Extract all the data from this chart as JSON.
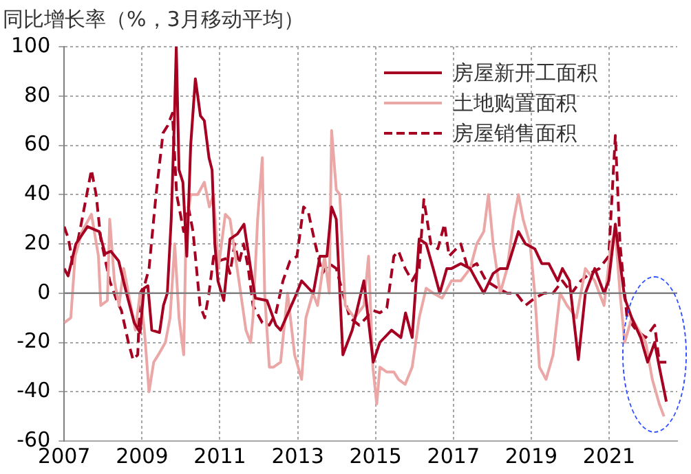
{
  "chart_data": {
    "type": "line",
    "title": "同比增长率（%，3月移动平均）",
    "xlim": [
      2007,
      2022.75
    ],
    "xticks": [
      2007,
      2009,
      2011,
      2013,
      2015,
      2017,
      2019,
      2021
    ],
    "ylim": [
      -60,
      100
    ],
    "yticks": [
      -60,
      -40,
      -20,
      0,
      20,
      40,
      60,
      80,
      100
    ],
    "grid": true,
    "legend": "top right",
    "marker": "none",
    "ref_lines": [
      {
        "axis": "y",
        "value": 0,
        "color": "#808080"
      }
    ],
    "series": [
      {
        "name": "房屋新开工面积",
        "color": "#a50021",
        "line_style": "solid",
        "x": [
          2007.0,
          2007.1,
          2007.3,
          2007.6,
          2007.9,
          2008.05,
          2008.2,
          2008.4,
          2008.6,
          2008.8,
          2008.95,
          2009.05,
          2009.15,
          2009.25,
          2009.45,
          2009.55,
          2009.65,
          2009.75,
          2009.83,
          2009.88,
          2009.95,
          2010.05,
          2010.15,
          2010.25,
          2010.37,
          2010.5,
          2010.6,
          2010.72,
          2010.8,
          2010.87,
          2010.95,
          2011.1,
          2011.26,
          2011.45,
          2011.62,
          2011.79,
          2011.91,
          2012.21,
          2012.44,
          2012.56,
          2012.92,
          2013.1,
          2013.4,
          2013.57,
          2013.75,
          2013.87,
          2013.99,
          2014.16,
          2014.4,
          2014.58,
          2014.7,
          2014.94,
          2015.11,
          2015.41,
          2015.65,
          2015.77,
          2015.94,
          2016.12,
          2016.3,
          2016.48,
          2016.65,
          2016.83,
          2016.95,
          2017.19,
          2017.43,
          2017.6,
          2017.78,
          2018.02,
          2018.2,
          2018.38,
          2018.67,
          2018.85,
          2019.09,
          2019.27,
          2019.45,
          2019.68,
          2019.8,
          2019.98,
          2020.21,
          2020.39,
          2020.63,
          2020.87,
          2020.99,
          2021.16,
          2021.22,
          2021.4,
          2021.58,
          2021.81,
          2021.99,
          2022.17,
          2022.29,
          2022.47
        ],
        "values": [
          10,
          7,
          20,
          27,
          25,
          16,
          17,
          13,
          0,
          -12,
          -16,
          2,
          3,
          -15,
          -16,
          -5,
          0,
          30,
          70,
          100,
          50,
          45,
          15,
          60,
          87,
          72,
          70,
          55,
          50,
          20,
          5,
          -3,
          22,
          24,
          28,
          10,
          -2,
          -3,
          -13,
          -15,
          -2,
          5,
          0,
          15,
          15,
          35,
          30,
          -25,
          -15,
          -3,
          5,
          -28,
          -20,
          -15,
          -18,
          -8,
          -18,
          22,
          20,
          10,
          0,
          10,
          10,
          12,
          10,
          5,
          0,
          8,
          10,
          10,
          25,
          20,
          18,
          12,
          12,
          5,
          10,
          5,
          -27,
          0,
          10,
          0,
          5,
          28,
          20,
          -2,
          -10,
          -18,
          -28,
          -20,
          -30,
          -44
        ]
      },
      {
        "name": "土地购置面积",
        "color": "#eba6a6",
        "line_style": "solid",
        "x": [
          2007.0,
          2007.17,
          2007.28,
          2007.46,
          2007.7,
          2007.88,
          2007.94,
          2008.11,
          2008.17,
          2008.29,
          2008.41,
          2008.53,
          2008.71,
          2008.83,
          2008.95,
          2009.06,
          2009.18,
          2009.3,
          2009.42,
          2009.6,
          2009.72,
          2009.84,
          2009.95,
          2010.07,
          2010.13,
          2010.25,
          2010.43,
          2010.6,
          2010.73,
          2010.84,
          2010.96,
          2011.14,
          2011.26,
          2011.49,
          2011.67,
          2011.79,
          2011.85,
          2011.97,
          2012.09,
          2012.15,
          2012.27,
          2012.38,
          2012.56,
          2012.74,
          2012.92,
          2013.1,
          2013.21,
          2013.39,
          2013.51,
          2013.69,
          2013.81,
          2013.87,
          2013.99,
          2014.08,
          2014.22,
          2014.46,
          2014.7,
          2014.82,
          2014.93,
          2015.03,
          2015.11,
          2015.29,
          2015.47,
          2015.59,
          2015.76,
          2015.94,
          2016.12,
          2016.3,
          2016.48,
          2016.71,
          2016.95,
          2017.19,
          2017.43,
          2017.6,
          2017.78,
          2017.9,
          2018.02,
          2018.2,
          2018.38,
          2018.55,
          2018.67,
          2018.79,
          2018.97,
          2019.09,
          2019.21,
          2019.38,
          2019.56,
          2019.74,
          2019.92,
          2020.16,
          2020.39,
          2020.63,
          2020.87,
          2021.05,
          2021.16,
          2021.28,
          2021.4,
          2021.58,
          2021.76,
          2021.94,
          2022.11,
          2022.29,
          2022.41
        ],
        "values": [
          -12,
          -10,
          15,
          25,
          32,
          15,
          -5,
          -3,
          30,
          5,
          -5,
          10,
          -5,
          -15,
          0,
          -15,
          -40,
          -28,
          -25,
          -20,
          -10,
          20,
          -10,
          -25,
          25,
          40,
          40,
          45,
          35,
          40,
          10,
          32,
          30,
          5,
          -15,
          -20,
          -10,
          30,
          55,
          0,
          -30,
          -30,
          -28,
          0,
          -25,
          -35,
          -10,
          0,
          -5,
          15,
          0,
          66,
          42,
          40,
          -5,
          -10,
          -5,
          15,
          -30,
          -45,
          -30,
          -32,
          -32,
          -35,
          -37,
          -30,
          -10,
          2,
          0,
          -2,
          5,
          5,
          10,
          20,
          25,
          40,
          20,
          0,
          10,
          30,
          40,
          30,
          20,
          0,
          -30,
          -35,
          -25,
          0,
          -5,
          -10,
          10,
          5,
          -5,
          20,
          25,
          0,
          -20,
          -10,
          -15,
          -20,
          -35,
          -45,
          -50
        ]
      },
      {
        "name": "房屋销售面积",
        "color": "#a50021",
        "line_style": "dashed",
        "x": [
          2007.0,
          2007.11,
          2007.22,
          2007.4,
          2007.58,
          2007.7,
          2007.82,
          2007.94,
          2008.17,
          2008.35,
          2008.47,
          2008.65,
          2008.77,
          2008.89,
          2008.95,
          2009.06,
          2009.18,
          2009.36,
          2009.54,
          2009.66,
          2009.78,
          2009.89,
          2010.07,
          2010.19,
          2010.31,
          2010.49,
          2010.61,
          2010.72,
          2010.84,
          2010.96,
          2011.14,
          2011.26,
          2011.38,
          2011.49,
          2011.61,
          2011.73,
          2011.85,
          2012.09,
          2012.27,
          2012.44,
          2012.62,
          2012.8,
          2012.98,
          2013.15,
          2013.27,
          2013.45,
          2013.63,
          2013.81,
          2013.99,
          2014.16,
          2014.34,
          2014.58,
          2014.76,
          2014.93,
          2015.11,
          2015.29,
          2015.47,
          2015.59,
          2015.76,
          2015.94,
          2016.12,
          2016.24,
          2016.42,
          2016.6,
          2016.77,
          2016.89,
          2017.19,
          2017.37,
          2017.6,
          2017.84,
          2018.14,
          2018.38,
          2018.61,
          2018.85,
          2019.09,
          2019.33,
          2019.56,
          2019.8,
          2020.04,
          2020.27,
          2020.51,
          2020.75,
          2020.99,
          2021.16,
          2021.28,
          2021.46,
          2021.7,
          2021.94,
          2022.17,
          2022.29,
          2022.47
        ],
        "values": [
          27,
          22,
          12,
          25,
          40,
          50,
          40,
          22,
          5,
          -3,
          -7,
          -20,
          -27,
          -25,
          0,
          3,
          10,
          40,
          65,
          68,
          73,
          40,
          25,
          35,
          25,
          -5,
          -10,
          0,
          15,
          13,
          14,
          8,
          20,
          12,
          20,
          10,
          -5,
          -12,
          -13,
          -8,
          5,
          13,
          15,
          35,
          33,
          20,
          8,
          12,
          10,
          0,
          -10,
          -13,
          -10,
          -7,
          -8,
          -6,
          15,
          17,
          10,
          5,
          10,
          38,
          20,
          18,
          28,
          15,
          20,
          10,
          12,
          5,
          2,
          0,
          0,
          -5,
          -2,
          0,
          0,
          5,
          0,
          5,
          8,
          10,
          15,
          64,
          20,
          -10,
          -15,
          -18,
          -13,
          -28,
          -28
        ]
      }
    ]
  }
}
